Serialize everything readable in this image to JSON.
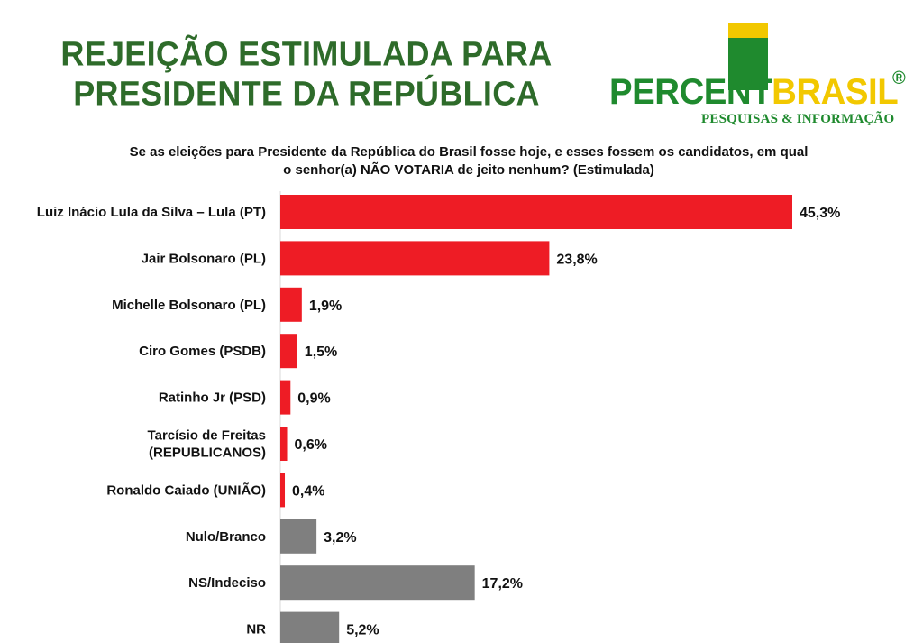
{
  "header": {
    "title_line1": "REJEIÇÃO ESTIMULADA PARA",
    "title_line2": "PRESIDENTE DA REPÚBLICA"
  },
  "logo": {
    "word_part1": "PERCENT",
    "word_part2": "BRASIL",
    "registered": "®",
    "tagline": "PESQUISAS & INFORMAÇÃO",
    "colors": {
      "green": "#1f8a2e",
      "yellow": "#f2c800"
    }
  },
  "chart_data": {
    "type": "bar",
    "orientation": "horizontal",
    "title": "Se as eleições para Presidente da República do Brasil fosse hoje, e esses fossem os candidatos, em qual o senhor(a) NÃO VOTARIA de jeito nenhum? (Estimulada)",
    "title_lines": [
      "Se as eleições para Presidente da República do Brasil fosse hoje, e esses fossem os candidatos, em qual",
      "o senhor(a) NÃO VOTARIA de jeito nenhum? (Estimulada)"
    ],
    "categories": [
      [
        "Luiz Inácio Lula da Silva – Lula (PT)"
      ],
      [
        "Jair Bolsonaro (PL)"
      ],
      [
        "Michelle Bolsonaro (PL)"
      ],
      [
        "Ciro Gomes (PSDB)"
      ],
      [
        "Ratinho Jr (PSD)"
      ],
      [
        "Tarcísio de Freitas",
        "(REPUBLICANOS)"
      ],
      [
        "Ronaldo Caiado (UNIÃO)"
      ],
      [
        "Nulo/Branco"
      ],
      [
        "NS/Indeciso"
      ],
      [
        "NR"
      ]
    ],
    "values": [
      45.3,
      23.8,
      1.9,
      1.5,
      0.9,
      0.6,
      0.4,
      3.2,
      17.2,
      5.2
    ],
    "value_labels": [
      "45,3%",
      "23,8%",
      "1,9%",
      "1,5%",
      "0,9%",
      "0,6%",
      "0,4%",
      "3,2%",
      "17,2%",
      "5,2%"
    ],
    "bar_colors": [
      "#ee1c25",
      "#ee1c25",
      "#ee1c25",
      "#ee1c25",
      "#ee1c25",
      "#ee1c25",
      "#ee1c25",
      "#7f7f7f",
      "#7f7f7f",
      "#7f7f7f"
    ],
    "xlim": [
      0,
      45.3
    ],
    "xlabel": "",
    "ylabel": "",
    "grid": false,
    "legend": "none"
  }
}
